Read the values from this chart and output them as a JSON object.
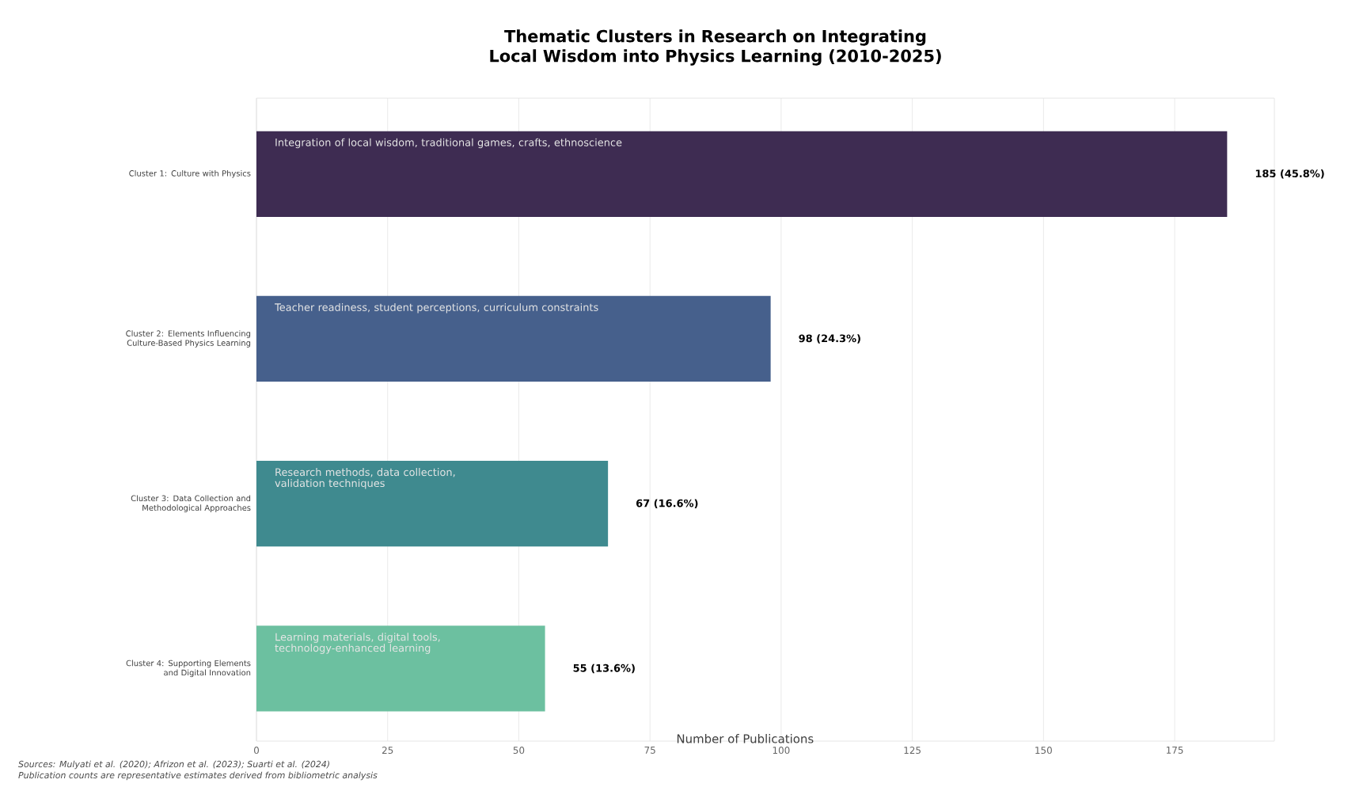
{
  "chart_data": {
    "type": "bar",
    "orientation": "horizontal",
    "title": "Thematic Clusters in Research on Integrating Local Wisdom into Physics Learning (2010-2025)",
    "xlabel": "Number of Publications",
    "categories": [
      "Cluster 1: Culture with Physics",
      "Cluster 2: Elements Influencing Culture-Based Physics Learning",
      "Cluster 3: Data Collection and Methodological Approaches",
      "Cluster 4: Supporting Elements and Digital Innovation"
    ],
    "values": [
      185,
      98,
      67,
      55
    ],
    "colors": [
      "#3e2c52",
      "#46608c",
      "#3f8a8f",
      "#6cc0a0"
    ],
    "value_labels": [
      "185 (45.8%)",
      "98 (24.3%)",
      "67 (16.6%)",
      "55 (13.6%)"
    ],
    "xlim": [
      0,
      194
    ],
    "xticks": [
      0,
      25,
      50,
      75,
      100,
      125,
      150,
      175
    ],
    "grid": "x",
    "annotations": [
      "Integration of local wisdom, traditional games, crafts, ethnoscience",
      "Teacher readiness, student perceptions, curriculum constraints",
      "Research methods, data collection, validation techniques",
      "Learning materials, digital tools, technology-enhanced learning",
      "Sources: Mulyati et al. (2020); Afrizon et al. (2023); Suarti et al. (2024)",
      "Publication counts are representative estimates derived from bibliometric analysis"
    ]
  }
}
